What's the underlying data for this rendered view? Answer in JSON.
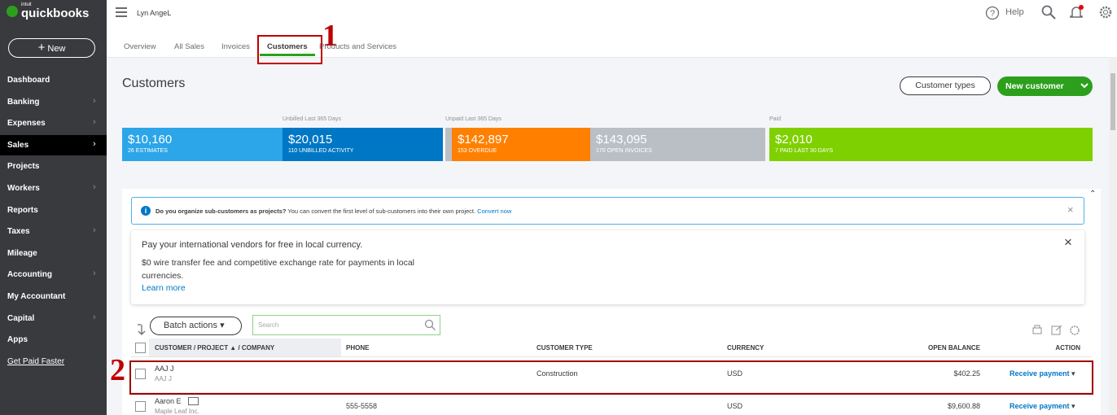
{
  "sidebar": {
    "brand_small": "intuit",
    "brand": "quickbooks",
    "new_button": "New",
    "items": [
      {
        "label": "Dashboard",
        "submenu": false
      },
      {
        "label": "Banking",
        "submenu": true
      },
      {
        "label": "Expenses",
        "submenu": true
      },
      {
        "label": "Sales",
        "submenu": true,
        "active": true
      },
      {
        "label": "Projects",
        "submenu": false
      },
      {
        "label": "Workers",
        "submenu": true
      },
      {
        "label": "Reports",
        "submenu": false
      },
      {
        "label": "Taxes",
        "submenu": true
      },
      {
        "label": "Mileage",
        "submenu": false
      },
      {
        "label": "Accounting",
        "submenu": true
      },
      {
        "label": "My Accountant",
        "submenu": false
      },
      {
        "label": "Capital",
        "submenu": true
      },
      {
        "label": "Apps",
        "submenu": false
      }
    ],
    "get_paid": "Get Paid Faster"
  },
  "header": {
    "user": "Lyn AngeL",
    "help": "Help"
  },
  "tabs": [
    "Overview",
    "All Sales",
    "Invoices",
    "Customers",
    "Products and Services"
  ],
  "annotations": [
    "1",
    "2"
  ],
  "page_title": "Customers",
  "buttons": {
    "customer_types": "Customer types",
    "new_customer": "New customer"
  },
  "money_bar": {
    "groups": [
      "Unbilled Last 365 Days",
      "Unpaid Last 365 Days",
      "Paid"
    ],
    "tiles": [
      {
        "amount": "$10,160",
        "label": "26 ESTIMATES",
        "color": "#2ca5e9"
      },
      {
        "amount": "$20,015",
        "label": "110 UNBILLED ACTIVITY",
        "color": "#0077c5"
      },
      {
        "amount": "$142,897",
        "label": "153 OVERDUE",
        "color": "#ff8000"
      },
      {
        "amount": "$143,095",
        "label": "170 OPEN INVOICES",
        "color": "#babec5"
      },
      {
        "amount": "$2,010",
        "label": "7 PAID LAST 30 DAYS",
        "color": "#7fd000"
      }
    ]
  },
  "notice": {
    "bold": "Do you organize sub-customers as projects?",
    "text": "You can convert the first level of sub-customers into their own project.",
    "link": "Convert now"
  },
  "promo": {
    "title": "Pay your international vendors for free in local currency.",
    "body": "$0 wire transfer fee and competitive exchange rate for payments in local currencies.",
    "link": "Learn more"
  },
  "table": {
    "batch": "Batch actions",
    "search_placeholder": "Search",
    "columns": [
      "CUSTOMER / PROJECT ▲ / COMPANY",
      "PHONE",
      "CUSTOMER TYPE",
      "CURRENCY",
      "OPEN BALANCE",
      "ACTION"
    ],
    "rows": [
      {
        "name": "AAJ J",
        "company": "AAJ J",
        "type": "Construction",
        "currency": "USD",
        "balance": "$402.25",
        "action": "Receive payment"
      },
      {
        "name": "Aaron E",
        "company": "Maple Leaf Inc.",
        "phone": "555-5558",
        "currency": "USD",
        "balance": "$9,600.88",
        "action": "Receive payment"
      }
    ]
  }
}
